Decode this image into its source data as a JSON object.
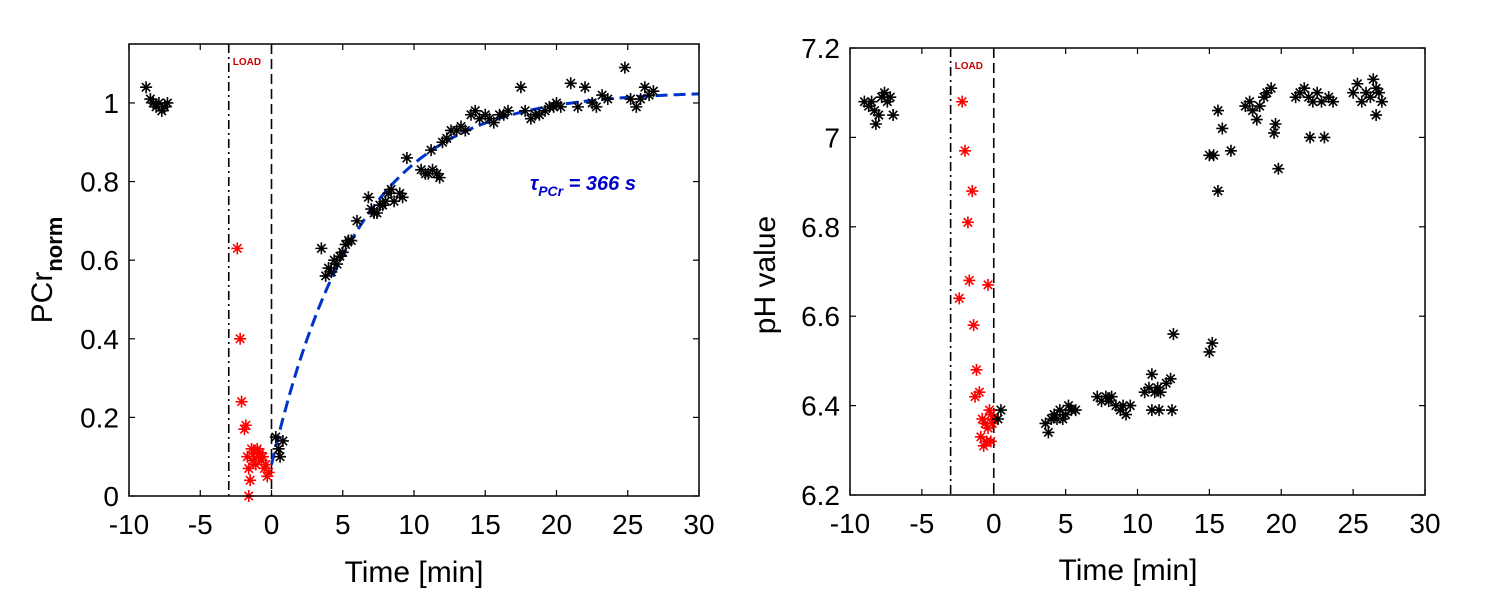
{
  "chart_data": [
    {
      "type": "scatter",
      "panel": "left",
      "xlabel": "Time [min]",
      "ylabel_main": "PCr",
      "ylabel_sub": "norm",
      "xlim": [
        -10,
        30
      ],
      "ylim": [
        0,
        1.15
      ],
      "xticks": [
        -10,
        -5,
        0,
        5,
        10,
        15,
        20,
        25,
        30
      ],
      "yticks": [
        0,
        0.2,
        0.4,
        0.6,
        0.8,
        1
      ],
      "xtick_labels": [
        "-10",
        "-5",
        "0",
        "5",
        "10",
        "15",
        "20",
        "25",
        "30"
      ],
      "ytick_labels": [
        "0",
        "0.2",
        "0.4",
        "0.6",
        "0.8",
        "1"
      ],
      "load_start": -3,
      "load_end": 0,
      "load_label": "LOAD",
      "annotation_main": "τ",
      "annotation_sub": "PCr",
      "annotation_rest": " = 366 s",
      "fit": {
        "name": "monoexponential fit",
        "tau_s": 366,
        "baseline": 0.08,
        "plateau": 1.03,
        "t0": 0
      },
      "series": [
        {
          "name": "rest",
          "color": "#000000",
          "points": [
            [
              -8.8,
              1.04
            ],
            [
              -8.5,
              1.01
            ],
            [
              -8.3,
              1.0
            ],
            [
              -8.1,
              0.99
            ],
            [
              -7.9,
              1.0
            ],
            [
              -7.7,
              0.98
            ],
            [
              -7.5,
              0.99
            ],
            [
              -7.3,
              1.0
            ]
          ]
        },
        {
          "name": "load",
          "color": "#ff0000",
          "points": [
            [
              -2.4,
              0.63
            ],
            [
              -2.2,
              0.4
            ],
            [
              -2.1,
              0.24
            ],
            [
              -1.9,
              0.17
            ],
            [
              -1.8,
              0.18
            ],
            [
              -1.7,
              0.1
            ],
            [
              -1.6,
              0.07
            ],
            [
              -1.5,
              0.04
            ],
            [
              -1.4,
              0.12
            ],
            [
              -1.3,
              0.09
            ],
            [
              -1.2,
              0.11
            ],
            [
              -1.1,
              0.08
            ],
            [
              -1.0,
              0.12
            ],
            [
              -0.9,
              0.1
            ],
            [
              -0.8,
              0.11
            ],
            [
              -0.7,
              0.09
            ],
            [
              -0.6,
              0.1
            ],
            [
              -0.5,
              0.07
            ],
            [
              -0.4,
              0.08
            ],
            [
              -0.3,
              0.05
            ],
            [
              -0.2,
              0.06
            ],
            [
              -1.6,
              0.0
            ]
          ]
        },
        {
          "name": "recovery",
          "color": "#000000",
          "points": [
            [
              0.3,
              0.15
            ],
            [
              0.5,
              0.12
            ],
            [
              0.6,
              0.1
            ],
            [
              0.8,
              0.14
            ],
            [
              3.5,
              0.63
            ],
            [
              3.8,
              0.56
            ],
            [
              4.0,
              0.58
            ],
            [
              4.2,
              0.57
            ],
            [
              4.4,
              0.6
            ],
            [
              4.6,
              0.59
            ],
            [
              4.8,
              0.61
            ],
            [
              5.0,
              0.62
            ],
            [
              5.2,
              0.64
            ],
            [
              5.4,
              0.65
            ],
            [
              5.6,
              0.65
            ],
            [
              6.0,
              0.7
            ],
            [
              6.8,
              0.76
            ],
            [
              7.0,
              0.73
            ],
            [
              7.2,
              0.72
            ],
            [
              7.4,
              0.72
            ],
            [
              7.6,
              0.74
            ],
            [
              7.8,
              0.74
            ],
            [
              8.0,
              0.75
            ],
            [
              8.2,
              0.77
            ],
            [
              8.4,
              0.78
            ],
            [
              8.6,
              0.75
            ],
            [
              9.0,
              0.77
            ],
            [
              9.2,
              0.76
            ],
            [
              9.5,
              0.86
            ],
            [
              10.5,
              0.83
            ],
            [
              10.8,
              0.82
            ],
            [
              11.0,
              0.82
            ],
            [
              11.3,
              0.83
            ],
            [
              11.6,
              0.82
            ],
            [
              11.8,
              0.81
            ],
            [
              11.2,
              0.88
            ],
            [
              12.0,
              0.9
            ],
            [
              12.3,
              0.91
            ],
            [
              12.6,
              0.93
            ],
            [
              13.0,
              0.93
            ],
            [
              13.3,
              0.94
            ],
            [
              13.6,
              0.93
            ],
            [
              14.0,
              0.97
            ],
            [
              14.3,
              0.98
            ],
            [
              14.6,
              0.96
            ],
            [
              15.0,
              0.97
            ],
            [
              15.3,
              0.96
            ],
            [
              15.6,
              0.95
            ],
            [
              16.0,
              0.97
            ],
            [
              16.3,
              0.97
            ],
            [
              16.6,
              0.98
            ],
            [
              17.5,
              1.04
            ],
            [
              17.8,
              0.98
            ],
            [
              18.2,
              0.96
            ],
            [
              18.5,
              0.97
            ],
            [
              18.8,
              0.97
            ],
            [
              19.2,
              0.98
            ],
            [
              19.5,
              0.99
            ],
            [
              19.8,
              0.99
            ],
            [
              20.0,
              1.0
            ],
            [
              20.3,
              0.99
            ],
            [
              21.0,
              1.05
            ],
            [
              21.5,
              0.99
            ],
            [
              22.0,
              1.04
            ],
            [
              22.5,
              1.0
            ],
            [
              22.8,
              0.99
            ],
            [
              23.2,
              1.02
            ],
            [
              23.6,
              1.01
            ],
            [
              24.8,
              1.09
            ],
            [
              25.2,
              1.01
            ],
            [
              25.6,
              0.99
            ],
            [
              25.9,
              1.01
            ],
            [
              26.2,
              1.04
            ],
            [
              26.5,
              1.02
            ],
            [
              26.8,
              1.03
            ]
          ]
        }
      ]
    },
    {
      "type": "scatter",
      "panel": "right",
      "xlabel": "Time [min]",
      "ylabel": "pH value",
      "xlim": [
        -10,
        30
      ],
      "ylim": [
        6.2,
        7.2
      ],
      "xticks": [
        -10,
        -5,
        0,
        5,
        10,
        15,
        20,
        25,
        30
      ],
      "yticks": [
        6.2,
        6.4,
        6.6,
        6.8,
        7,
        7.2
      ],
      "xtick_labels": [
        "-10",
        "-5",
        "0",
        "5",
        "10",
        "15",
        "20",
        "25",
        "30"
      ],
      "ytick_labels": [
        "6.2",
        "6.4",
        "6.6",
        "6.8",
        "7",
        "7.2"
      ],
      "load_start": -3,
      "load_end": 0,
      "load_label": "LOAD",
      "series": [
        {
          "name": "rest",
          "color": "#000000",
          "points": [
            [
              -9.0,
              7.08
            ],
            [
              -8.7,
              7.07
            ],
            [
              -8.5,
              7.08
            ],
            [
              -8.3,
              7.06
            ],
            [
              -8.2,
              7.03
            ],
            [
              -8.0,
              7.05
            ],
            [
              -7.8,
              7.09
            ],
            [
              -7.6,
              7.1
            ],
            [
              -7.4,
              7.08
            ],
            [
              -7.2,
              7.09
            ],
            [
              -7.0,
              7.05
            ]
          ]
        },
        {
          "name": "load",
          "color": "#ff0000",
          "points": [
            [
              -2.2,
              7.08
            ],
            [
              -2.0,
              6.97
            ],
            [
              -1.8,
              6.81
            ],
            [
              -1.7,
              6.68
            ],
            [
              -1.5,
              6.88
            ],
            [
              -2.4,
              6.64
            ],
            [
              -1.4,
              6.58
            ],
            [
              -1.2,
              6.48
            ],
            [
              -1.0,
              6.43
            ],
            [
              -1.3,
              6.42
            ],
            [
              -0.8,
              6.37
            ],
            [
              -0.6,
              6.36
            ],
            [
              -0.9,
              6.33
            ],
            [
              -0.7,
              6.31
            ],
            [
              -0.5,
              6.32
            ],
            [
              -0.4,
              6.35
            ],
            [
              -0.3,
              6.39
            ],
            [
              -0.2,
              6.38
            ],
            [
              -0.1,
              6.36
            ],
            [
              0.0,
              6.37
            ],
            [
              -0.4,
              6.67
            ],
            [
              -0.2,
              6.32
            ]
          ]
        },
        {
          "name": "recovery",
          "color": "#000000",
          "points": [
            [
              0.3,
              6.37
            ],
            [
              0.5,
              6.39
            ],
            [
              3.6,
              6.36
            ],
            [
              3.8,
              6.34
            ],
            [
              4.0,
              6.37
            ],
            [
              4.2,
              6.38
            ],
            [
              4.4,
              6.37
            ],
            [
              4.6,
              6.39
            ],
            [
              4.8,
              6.37
            ],
            [
              5.0,
              6.38
            ],
            [
              5.2,
              6.4
            ],
            [
              5.4,
              6.39
            ],
            [
              5.7,
              6.39
            ],
            [
              7.2,
              6.42
            ],
            [
              7.5,
              6.41
            ],
            [
              7.8,
              6.42
            ],
            [
              8.0,
              6.41
            ],
            [
              8.2,
              6.42
            ],
            [
              8.5,
              6.4
            ],
            [
              8.8,
              6.39
            ],
            [
              9.0,
              6.4
            ],
            [
              9.2,
              6.38
            ],
            [
              9.5,
              6.4
            ],
            [
              10.5,
              6.43
            ],
            [
              10.8,
              6.44
            ],
            [
              11.0,
              6.47
            ],
            [
              11.2,
              6.43
            ],
            [
              11.4,
              6.44
            ],
            [
              11.6,
              6.43
            ],
            [
              11.0,
              6.39
            ],
            [
              11.5,
              6.39
            ],
            [
              12.0,
              6.45
            ],
            [
              12.3,
              6.46
            ],
            [
              12.4,
              6.39
            ],
            [
              12.5,
              6.56
            ],
            [
              15.0,
              6.52
            ],
            [
              15.2,
              6.54
            ],
            [
              15.0,
              6.96
            ],
            [
              15.3,
              6.96
            ],
            [
              15.6,
              7.06
            ],
            [
              15.9,
              7.02
            ],
            [
              15.6,
              6.88
            ],
            [
              16.5,
              6.97
            ],
            [
              17.5,
              7.07
            ],
            [
              17.8,
              7.08
            ],
            [
              18.0,
              7.06
            ],
            [
              18.3,
              7.04
            ],
            [
              18.5,
              7.07
            ],
            [
              18.8,
              7.09
            ],
            [
              19.0,
              7.1
            ],
            [
              19.3,
              7.11
            ],
            [
              19.6,
              7.03
            ],
            [
              19.5,
              7.01
            ],
            [
              19.8,
              6.93
            ],
            [
              21.0,
              7.09
            ],
            [
              21.3,
              7.1
            ],
            [
              21.6,
              7.11
            ],
            [
              21.9,
              7.09
            ],
            [
              22.2,
              7.08
            ],
            [
              22.0,
              7.0
            ],
            [
              22.5,
              7.1
            ],
            [
              22.8,
              7.08
            ],
            [
              23.0,
              7.0
            ],
            [
              23.3,
              7.09
            ],
            [
              23.6,
              7.08
            ],
            [
              25.0,
              7.1
            ],
            [
              25.3,
              7.12
            ],
            [
              25.6,
              7.08
            ],
            [
              25.9,
              7.1
            ],
            [
              26.2,
              7.09
            ],
            [
              26.4,
              7.13
            ],
            [
              26.6,
              7.11
            ],
            [
              26.8,
              7.1
            ],
            [
              27.0,
              7.08
            ],
            [
              26.6,
              7.05
            ]
          ]
        }
      ]
    }
  ]
}
